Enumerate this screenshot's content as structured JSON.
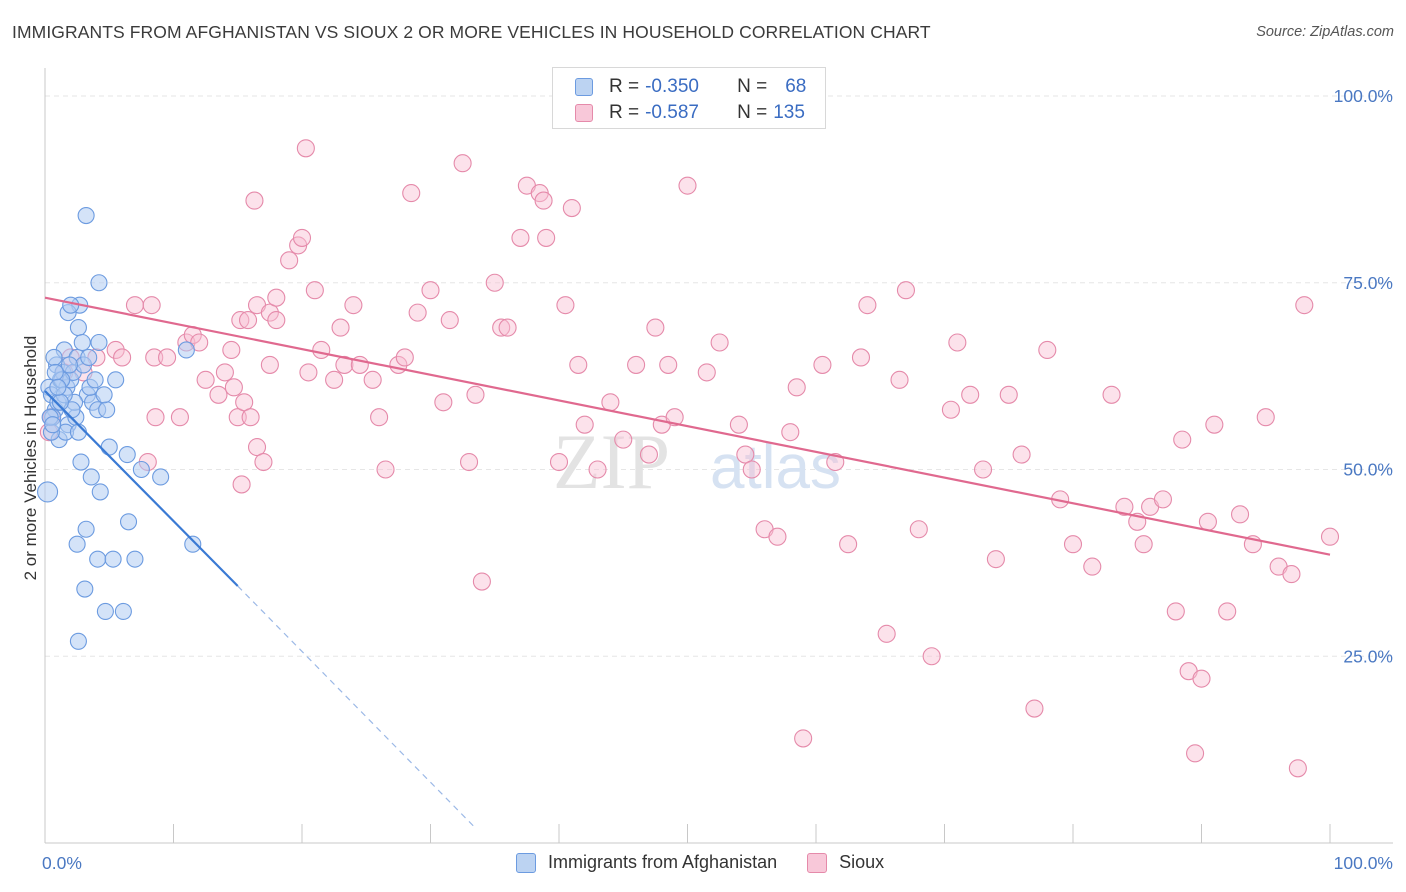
{
  "title": "IMMIGRANTS FROM AFGHANISTAN VS SIOUX 2 OR MORE VEHICLES IN HOUSEHOLD CORRELATION CHART",
  "source": "Source: ZipAtlas.com",
  "watermark": {
    "zip": "ZIP",
    "atlas": "atlas"
  },
  "legend": {
    "rows": [
      {
        "r_label": "R =",
        "r_value": "-0.350",
        "n_label": "N =",
        "n_value": "68"
      },
      {
        "r_label": "R =",
        "r_value": "-0.587",
        "n_label": "N =",
        "n_value": "135"
      }
    ]
  },
  "bottom_legend": {
    "series1": "Immigrants from Afghanistan",
    "series2": "Sioux"
  },
  "chart_data": {
    "type": "scatter",
    "title": "IMMIGRANTS FROM AFGHANISTAN VS SIOUX 2 OR MORE VEHICLES IN HOUSEHOLD CORRELATION CHART",
    "xlabel": "",
    "ylabel": "2 or more Vehicles in Household",
    "xlim": [
      0,
      100
    ],
    "ylim": [
      0,
      100
    ],
    "x_tick_labels": [
      "0.0%",
      "100.0%"
    ],
    "y_ticks": [
      25,
      50,
      75,
      100
    ],
    "y_tick_labels": [
      "25.0%",
      "50.0%",
      "75.0%",
      "100.0%"
    ],
    "grid": true,
    "colors": {
      "afghanistan": "#6c9be0",
      "afghanistan_line": "#3a7ad4",
      "sioux": "#e58aaa",
      "sioux_line": "#e0698f",
      "tick_label": "#4a78c2"
    },
    "series": [
      {
        "name": "Immigrants from Afghanistan",
        "r": -0.35,
        "n": 68,
        "trend": {
          "x0": 0.0,
          "y0": 60.5,
          "x1": 15.0,
          "y1": 34.4,
          "dash_x1": 33.5,
          "dash_y1": 2.0
        },
        "points": [
          [
            0.3,
            61
          ],
          [
            0.5,
            60
          ],
          [
            0.8,
            58
          ],
          [
            1.0,
            59
          ],
          [
            1.2,
            62
          ],
          [
            0.6,
            57
          ],
          [
            0.9,
            64
          ],
          [
            1.4,
            63
          ],
          [
            1.7,
            61
          ],
          [
            2.0,
            62
          ],
          [
            2.2,
            63
          ],
          [
            1.5,
            66
          ],
          [
            2.5,
            65
          ],
          [
            3.0,
            64
          ],
          [
            1.8,
            56
          ],
          [
            2.4,
            57
          ],
          [
            3.3,
            60
          ],
          [
            3.7,
            59
          ],
          [
            4.1,
            58
          ],
          [
            1.1,
            54
          ],
          [
            1.6,
            55
          ],
          [
            2.8,
            51
          ],
          [
            3.6,
            49
          ],
          [
            4.3,
            47
          ],
          [
            5.0,
            53
          ],
          [
            6.4,
            52
          ],
          [
            7.5,
            50
          ],
          [
            3.2,
            42
          ],
          [
            2.5,
            40
          ],
          [
            4.1,
            38
          ],
          [
            5.3,
            38
          ],
          [
            7.0,
            38
          ],
          [
            6.5,
            43
          ],
          [
            3.1,
            34
          ],
          [
            4.7,
            31
          ],
          [
            6.1,
            31
          ],
          [
            2.6,
            27
          ],
          [
            3.2,
            84
          ],
          [
            4.2,
            75
          ],
          [
            2.7,
            72
          ],
          [
            1.8,
            71
          ],
          [
            2.6,
            69
          ],
          [
            4.2,
            67
          ],
          [
            11.0,
            66
          ],
          [
            0.5,
            55
          ],
          [
            9.0,
            49
          ],
          [
            11.5,
            40
          ],
          [
            2.0,
            72
          ],
          [
            0.2,
            47
          ],
          [
            1.3,
            62
          ],
          [
            0.7,
            65
          ],
          [
            2.3,
            59
          ],
          [
            3.5,
            61
          ],
          [
            4.8,
            58
          ],
          [
            0.4,
            57
          ],
          [
            1.9,
            64
          ],
          [
            2.9,
            67
          ],
          [
            3.9,
            62
          ],
          [
            0.8,
            63
          ],
          [
            1.5,
            60
          ],
          [
            2.1,
            58
          ],
          [
            0.6,
            56
          ],
          [
            1.2,
            59
          ],
          [
            2.6,
            55
          ],
          [
            3.4,
            65
          ],
          [
            4.6,
            60
          ],
          [
            5.5,
            62
          ],
          [
            1.0,
            61
          ]
        ]
      },
      {
        "name": "Sioux",
        "r": -0.587,
        "n": 135,
        "trend": {
          "x0": 0.0,
          "y0": 73.0,
          "x1": 100.0,
          "y1": 38.6
        },
        "points": [
          [
            0.5,
            57
          ],
          [
            0.3,
            55
          ],
          [
            1.5,
            63
          ],
          [
            2.0,
            65
          ],
          [
            3.0,
            63
          ],
          [
            4.0,
            65
          ],
          [
            5.5,
            66
          ],
          [
            6.0,
            65
          ],
          [
            7.0,
            72
          ],
          [
            8.0,
            51
          ],
          [
            8.3,
            72
          ],
          [
            8.5,
            65
          ],
          [
            8.6,
            57
          ],
          [
            9.5,
            65
          ],
          [
            10.5,
            57
          ],
          [
            11.0,
            67
          ],
          [
            11.5,
            68
          ],
          [
            12.0,
            67
          ],
          [
            12.5,
            62
          ],
          [
            13.5,
            60
          ],
          [
            14.0,
            63
          ],
          [
            14.7,
            61
          ],
          [
            15.0,
            57
          ],
          [
            15.5,
            59
          ],
          [
            16.0,
            57
          ],
          [
            16.5,
            53
          ],
          [
            17.0,
            51
          ],
          [
            17.5,
            64
          ],
          [
            15.3,
            48
          ],
          [
            14.5,
            66
          ],
          [
            15.2,
            70
          ],
          [
            15.8,
            70
          ],
          [
            16.5,
            72
          ],
          [
            16.3,
            86
          ],
          [
            17.5,
            71
          ],
          [
            18.0,
            70
          ],
          [
            19.0,
            78
          ],
          [
            19.7,
            80
          ],
          [
            20.0,
            81
          ],
          [
            18.0,
            73
          ],
          [
            20.5,
            63
          ],
          [
            20.3,
            93
          ],
          [
            21.0,
            74
          ],
          [
            21.5,
            66
          ],
          [
            22.5,
            62
          ],
          [
            23.0,
            69
          ],
          [
            23.3,
            64
          ],
          [
            24.0,
            72
          ],
          [
            24.5,
            64
          ],
          [
            25.5,
            62
          ],
          [
            26.0,
            57
          ],
          [
            26.5,
            50
          ],
          [
            27.5,
            64
          ],
          [
            28.0,
            65
          ],
          [
            28.5,
            87
          ],
          [
            29.0,
            71
          ],
          [
            30.0,
            74
          ],
          [
            31.0,
            59
          ],
          [
            31.5,
            70
          ],
          [
            32.5,
            91
          ],
          [
            33.0,
            51
          ],
          [
            34.0,
            35
          ],
          [
            33.5,
            60
          ],
          [
            35.0,
            75
          ],
          [
            35.5,
            69
          ],
          [
            36.0,
            69
          ],
          [
            37.0,
            81
          ],
          [
            37.5,
            88
          ],
          [
            38.5,
            87
          ],
          [
            38.8,
            86
          ],
          [
            39.0,
            81
          ],
          [
            40.0,
            51
          ],
          [
            40.5,
            72
          ],
          [
            41.0,
            85
          ],
          [
            41.5,
            64
          ],
          [
            42.0,
            56
          ],
          [
            43.0,
            50
          ],
          [
            44.0,
            59
          ],
          [
            45.0,
            54
          ],
          [
            46.0,
            64
          ],
          [
            47.0,
            52
          ],
          [
            47.5,
            69
          ],
          [
            48.0,
            56
          ],
          [
            48.5,
            64
          ],
          [
            49.0,
            57
          ],
          [
            50.0,
            88
          ],
          [
            51.5,
            63
          ],
          [
            52.5,
            67
          ],
          [
            54.0,
            56
          ],
          [
            54.5,
            52
          ],
          [
            55.0,
            50
          ],
          [
            56.0,
            42
          ],
          [
            57.0,
            41
          ],
          [
            58.0,
            55
          ],
          [
            58.5,
            61
          ],
          [
            59.0,
            14
          ],
          [
            60.5,
            64
          ],
          [
            61.5,
            51
          ],
          [
            62.5,
            40
          ],
          [
            63.5,
            65
          ],
          [
            64.0,
            72
          ],
          [
            65.5,
            28
          ],
          [
            66.5,
            62
          ],
          [
            67.0,
            74
          ],
          [
            68.0,
            42
          ],
          [
            69.0,
            25
          ],
          [
            70.5,
            58
          ],
          [
            71.0,
            67
          ],
          [
            72.0,
            60
          ],
          [
            73.0,
            50
          ],
          [
            74.0,
            38
          ],
          [
            75.0,
            60
          ],
          [
            76.0,
            52
          ],
          [
            77.0,
            18
          ],
          [
            78.0,
            66
          ],
          [
            79.0,
            46
          ],
          [
            80.0,
            40
          ],
          [
            81.5,
            37
          ],
          [
            83.0,
            60
          ],
          [
            84.0,
            45
          ],
          [
            85.0,
            43
          ],
          [
            85.5,
            40
          ],
          [
            86.0,
            45
          ],
          [
            87.0,
            46
          ],
          [
            88.0,
            31
          ],
          [
            88.5,
            54
          ],
          [
            89.0,
            23
          ],
          [
            89.5,
            12
          ],
          [
            90.0,
            22
          ],
          [
            90.5,
            43
          ],
          [
            91.0,
            56
          ],
          [
            92.0,
            31
          ],
          [
            93.0,
            44
          ],
          [
            94.0,
            40
          ],
          [
            95.0,
            57
          ],
          [
            96.0,
            37
          ],
          [
            97.0,
            36
          ],
          [
            97.5,
            10
          ],
          [
            98.0,
            72
          ],
          [
            100.0,
            41
          ]
        ]
      }
    ]
  }
}
